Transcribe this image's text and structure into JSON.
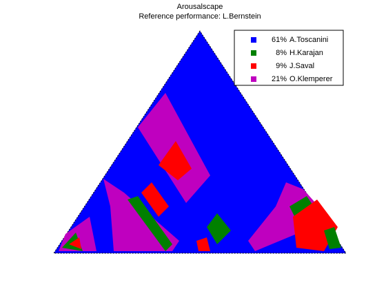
{
  "chart_data": {
    "type": "scape",
    "title": "Arousalscape",
    "subtitle": "Reference performance: L.Bernstein",
    "legend": "upper right",
    "series": [
      {
        "name": "A.Toscanini",
        "color": "#0000ff",
        "values": [
          61
        ],
        "value_labels": [
          "61%"
        ]
      },
      {
        "name": "H.Karajan",
        "color": "#008000",
        "values": [
          8
        ],
        "value_labels": [
          "8%"
        ]
      },
      {
        "name": "J.Saval",
        "color": "#ff0000",
        "values": [
          9
        ],
        "value_labels": [
          "9%"
        ]
      },
      {
        "name": "O.Klemperer",
        "color": "#bf00bf",
        "values": [
          21
        ],
        "value_labels": [
          "21%"
        ]
      }
    ]
  }
}
